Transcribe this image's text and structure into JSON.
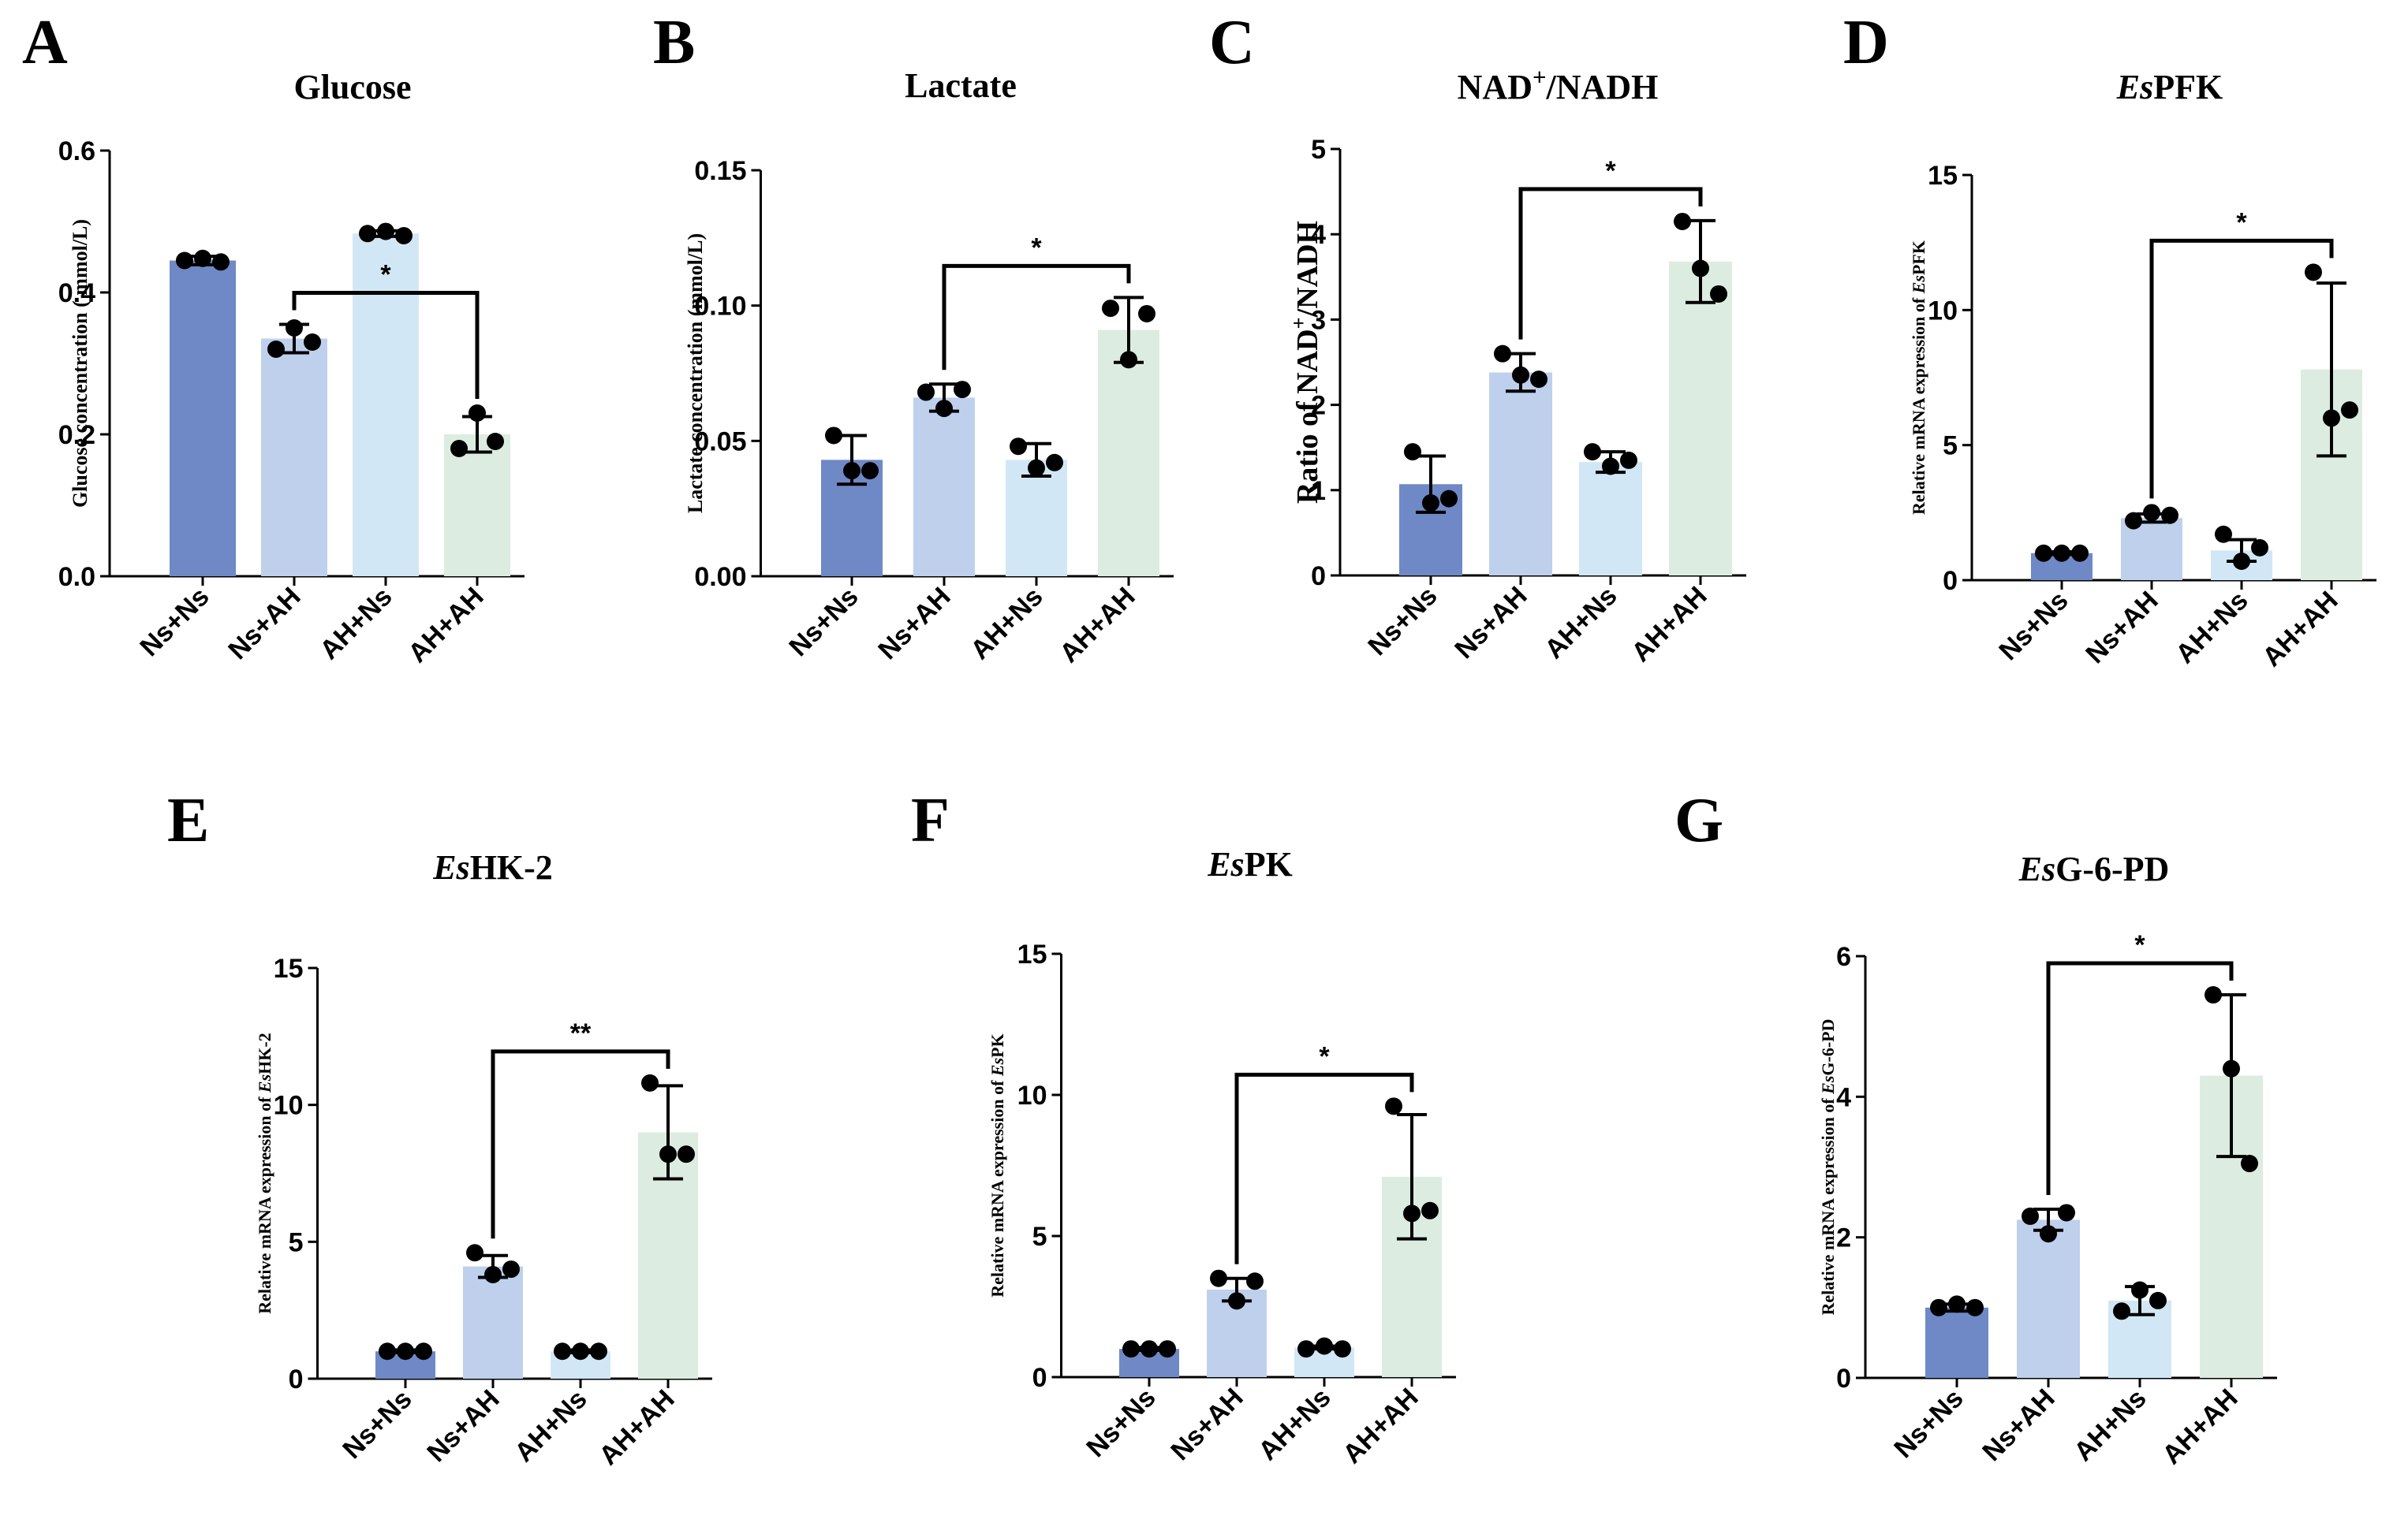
{
  "figure": {
    "panel_letters": [
      "A",
      "B",
      "C",
      "D",
      "E",
      "F",
      "G"
    ]
  },
  "colors": {
    "Ns+Ns": "#6f89c6",
    "Ns+AH": "#bed0ec",
    "AH+Ns": "#d2e7f5",
    "AH+AH": "#dcece1",
    "axis": "#000000",
    "dot": "#000000"
  },
  "chart_data": [
    {
      "type": "bar",
      "panel": "A",
      "title": "Glucose",
      "ylabel": "Glucose concentration ( mmol/L)",
      "categories": [
        "Ns+Ns",
        "Ns+AH",
        "AH+Ns",
        "AH+AH"
      ],
      "values": [
        0.445,
        0.335,
        0.483,
        0.2
      ],
      "errors": [
        0.006,
        0.02,
        0.004,
        0.025
      ],
      "points": [
        [
          0.445,
          0.448,
          0.443
        ],
        [
          0.32,
          0.35,
          0.33
        ],
        [
          0.483,
          0.486,
          0.48
        ],
        [
          0.18,
          0.23,
          0.19
        ]
      ],
      "ylim": [
        0,
        0.6
      ],
      "yticks": [
        "0.0",
        "0.2",
        "0.4",
        "0.6"
      ],
      "significance": {
        "from": "Ns+AH",
        "to": "AH+AH",
        "label": "*"
      }
    },
    {
      "type": "bar",
      "panel": "B",
      "title": "Lactate",
      "ylabel": "Lactate concentration (mmol/L)",
      "categories": [
        "Ns+Ns",
        "Ns+AH",
        "AH+Ns",
        "AH+AH"
      ],
      "values": [
        0.043,
        0.066,
        0.043,
        0.091
      ],
      "errors": [
        0.009,
        0.005,
        0.006,
        0.012
      ],
      "points": [
        [
          0.052,
          0.039,
          0.039
        ],
        [
          0.068,
          0.062,
          0.069
        ],
        [
          0.048,
          0.04,
          0.042
        ],
        [
          0.099,
          0.08,
          0.097
        ]
      ],
      "ylim": [
        0,
        0.15
      ],
      "yticks": [
        "0.00",
        "0.05",
        "0.10",
        "0.15"
      ],
      "significance": {
        "from": "Ns+AH",
        "to": "AH+AH",
        "label": "*"
      }
    },
    {
      "type": "bar",
      "panel": "C",
      "title": "NAD⁺/NADH",
      "ylabel": "Ratio of NAD⁺/NADH",
      "categories": [
        "Ns+Ns",
        "Ns+AH",
        "AH+Ns",
        "AH+AH"
      ],
      "values": [
        1.07,
        2.38,
        1.33,
        3.68
      ],
      "errors": [
        0.33,
        0.22,
        0.12,
        0.48
      ],
      "points": [
        [
          1.45,
          0.85,
          0.9
        ],
        [
          2.6,
          2.35,
          2.3
        ],
        [
          1.45,
          1.28,
          1.35
        ],
        [
          4.15,
          3.6,
          3.3
        ]
      ],
      "ylim": [
        0,
        5
      ],
      "yticks": [
        "0",
        "1",
        "2",
        "3",
        "4",
        "5"
      ],
      "significance": {
        "from": "Ns+AH",
        "to": "AH+AH",
        "label": "*"
      }
    },
    {
      "type": "bar",
      "panel": "D",
      "title": "EsPFK",
      "title_italic": "Es",
      "title_rest": "PFK",
      "ylabel": "Relative mRNA expression of EsPFK",
      "ylabel_plain": "Relative mRNA expression of ",
      "ylabel_italic": "Es",
      "ylabel_rest": "PFK",
      "categories": [
        "Ns+Ns",
        "Ns+AH",
        "AH+Ns",
        "AH+AH"
      ],
      "values": [
        1.0,
        2.3,
        1.1,
        7.8
      ],
      "errors": [
        0.05,
        0.15,
        0.4,
        3.2
      ],
      "points": [
        [
          1.0,
          1.0,
          1.0
        ],
        [
          2.2,
          2.5,
          2.4
        ],
        [
          1.7,
          0.7,
          1.2
        ],
        [
          11.4,
          6.0,
          6.3
        ]
      ],
      "ylim": [
        0,
        15
      ],
      "yticks": [
        "0",
        "5",
        "10",
        "15"
      ],
      "significance": {
        "from": "Ns+AH",
        "to": "AH+AH",
        "label": "*"
      }
    },
    {
      "type": "bar",
      "panel": "E",
      "title": "EsHK-2",
      "title_italic": "Es",
      "title_rest": "HK-2",
      "ylabel": "Relative mRNA expression of EsHK-2",
      "ylabel_plain": "Relative mRNA expression of ",
      "ylabel_italic": "Es",
      "ylabel_rest": "HK-2",
      "categories": [
        "Ns+Ns",
        "Ns+AH",
        "AH+Ns",
        "AH+AH"
      ],
      "values": [
        1.0,
        4.1,
        1.0,
        9.0
      ],
      "errors": [
        0.05,
        0.4,
        0.05,
        1.7
      ],
      "points": [
        [
          1.0,
          1.0,
          1.0
        ],
        [
          4.6,
          3.8,
          4.0
        ],
        [
          1.0,
          1.0,
          1.0
        ],
        [
          10.8,
          8.2,
          8.2
        ]
      ],
      "ylim": [
        0,
        15
      ],
      "yticks": [
        "0",
        "5",
        "10",
        "15"
      ],
      "significance": {
        "from": "Ns+AH",
        "to": "AH+AH",
        "label": "**"
      }
    },
    {
      "type": "bar",
      "panel": "F",
      "title": "EsPK",
      "title_italic": "Es",
      "title_rest": "PK",
      "ylabel": "Relative mRNA expression of EsPK",
      "ylabel_plain": "Relative mRNA expression of ",
      "ylabel_italic": "Es",
      "ylabel_rest": "PK",
      "categories": [
        "Ns+Ns",
        "Ns+AH",
        "AH+Ns",
        "AH+AH"
      ],
      "values": [
        1.0,
        3.1,
        1.05,
        7.1
      ],
      "errors": [
        0.05,
        0.4,
        0.05,
        2.2
      ],
      "points": [
        [
          1.0,
          1.0,
          1.0
        ],
        [
          3.5,
          2.7,
          3.4
        ],
        [
          1.0,
          1.1,
          1.0
        ],
        [
          9.6,
          5.8,
          5.9
        ]
      ],
      "ylim": [
        0,
        15
      ],
      "yticks": [
        "0",
        "5",
        "10",
        "15"
      ],
      "significance": {
        "from": "Ns+AH",
        "to": "AH+AH",
        "label": "*"
      }
    },
    {
      "type": "bar",
      "panel": "G",
      "title": "EsG-6-PD",
      "title_italic": "Es",
      "title_rest": "G-6-PD",
      "ylabel": "Relative mRNA expression of EsG-6-PD",
      "ylabel_plain": "Relative mRNA expression of ",
      "ylabel_italic": "Es",
      "ylabel_rest": "G-6-PD",
      "categories": [
        "Ns+Ns",
        "Ns+AH",
        "AH+Ns",
        "AH+AH"
      ],
      "values": [
        1.0,
        2.25,
        1.1,
        4.3
      ],
      "errors": [
        0.05,
        0.15,
        0.2,
        1.15
      ],
      "points": [
        [
          1.0,
          1.05,
          1.0
        ],
        [
          2.3,
          2.05,
          2.35
        ],
        [
          0.95,
          1.25,
          1.1
        ],
        [
          5.45,
          4.4,
          3.05
        ]
      ],
      "ylim": [
        0,
        6
      ],
      "yticks": [
        "0",
        "2",
        "4",
        "6"
      ],
      "significance": {
        "from": "Ns+AH",
        "to": "AH+AH",
        "label": "*"
      }
    }
  ]
}
